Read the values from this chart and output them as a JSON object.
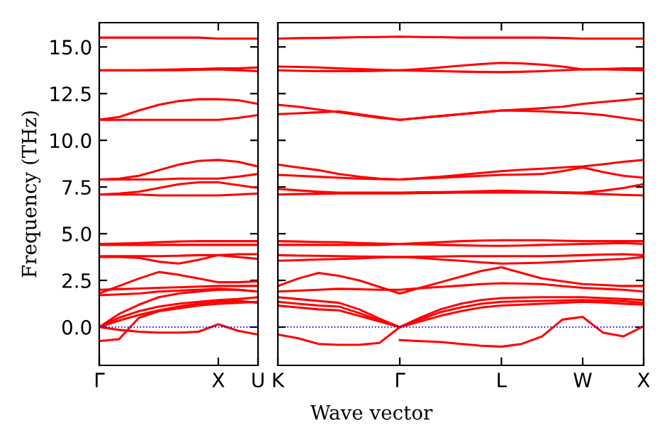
{
  "chart_data": [
    {
      "type": "line",
      "ylabel": "Frequency (THz)",
      "ylim": [
        -2.05,
        16.3
      ],
      "categories": [
        "Γ",
        null,
        null,
        null,
        null,
        null,
        "X",
        null,
        "U"
      ],
      "yticks": [
        {
          "value": 0,
          "label": "0.0"
        },
        {
          "value": 2.5,
          "label": "2.5"
        },
        {
          "value": 5,
          "label": "5.0"
        },
        {
          "value": 7.5,
          "label": "7.5"
        },
        {
          "value": 10,
          "label": "10.0"
        },
        {
          "value": 12.5,
          "label": "12.5"
        },
        {
          "value": 15,
          "label": "15.0"
        }
      ],
      "ref_lines": [
        {
          "axis": "y",
          "value": 0,
          "color": "#0000ff",
          "line_style": "dotted"
        }
      ],
      "series": [
        {
          "color": "#ff0000",
          "values": [
            15.5,
            15.5,
            15.5,
            15.5,
            15.5,
            15.5,
            15.45,
            15.45,
            15.45
          ]
        },
        {
          "color": "#ff0000",
          "values": [
            13.75,
            13.75,
            13.75,
            13.78,
            13.8,
            13.82,
            13.85,
            13.85,
            13.9
          ]
        },
        {
          "color": "#ff0000",
          "values": [
            13.75,
            13.75,
            13.75,
            13.75,
            13.75,
            13.78,
            13.8,
            13.75,
            13.7
          ]
        },
        {
          "color": "#ff0000",
          "values": [
            11.1,
            11.25,
            11.6,
            11.9,
            12.1,
            12.2,
            12.2,
            12.15,
            11.95
          ]
        },
        {
          "color": "#ff0000",
          "values": [
            11.1,
            11.1,
            11.1,
            11.1,
            11.1,
            11.1,
            11.1,
            11.2,
            11.35
          ]
        },
        {
          "color": "#ff0000",
          "values": [
            7.9,
            7.95,
            8.1,
            8.4,
            8.7,
            8.9,
            8.95,
            8.85,
            8.6
          ]
        },
        {
          "color": "#ff0000",
          "values": [
            7.9,
            7.9,
            7.9,
            7.9,
            7.95,
            7.95,
            7.95,
            8.05,
            8.2
          ]
        },
        {
          "color": "#ff0000",
          "values": [
            7.1,
            7.15,
            7.25,
            7.45,
            7.65,
            7.75,
            7.75,
            7.6,
            7.45
          ]
        },
        {
          "color": "#ff0000",
          "values": [
            7.1,
            7.1,
            7.1,
            7.05,
            7.05,
            7.05,
            7.05,
            7.1,
            7.15
          ]
        },
        {
          "color": "#ff0000",
          "values": [
            4.45,
            4.47,
            4.5,
            4.55,
            4.58,
            4.6,
            4.6,
            4.6,
            4.6
          ]
        },
        {
          "color": "#ff0000",
          "values": [
            4.4,
            4.4,
            4.4,
            4.4,
            4.4,
            4.4,
            4.4,
            4.4,
            4.4
          ]
        },
        {
          "color": "#ff0000",
          "values": [
            3.75,
            3.75,
            3.7,
            3.5,
            3.4,
            3.6,
            3.85,
            3.9,
            3.9
          ]
        },
        {
          "color": "#ff0000",
          "values": [
            3.8,
            3.8,
            3.8,
            3.8,
            3.82,
            3.85,
            3.85,
            3.75,
            3.65
          ]
        },
        {
          "color": "#ff0000",
          "values": [
            1.8,
            2.2,
            2.6,
            2.95,
            2.8,
            2.6,
            2.4,
            2.4,
            2.45
          ]
        },
        {
          "color": "#ff0000",
          "values": [
            2.0,
            2.03,
            2.06,
            2.1,
            2.13,
            2.17,
            2.2,
            2.2,
            2.2
          ]
        },
        {
          "color": "#ff0000",
          "values": [
            1.7,
            1.75,
            1.8,
            1.9,
            1.95,
            2.0,
            2.05,
            2.0,
            1.9
          ]
        },
        {
          "color": "#ff0000",
          "values": [
            0,
            0.35,
            0.65,
            0.9,
            1.1,
            1.25,
            1.35,
            1.4,
            1.3
          ]
        },
        {
          "color": "#ff0000",
          "values": [
            0,
            0.5,
            0.85,
            1.1,
            1.25,
            1.35,
            1.45,
            1.5,
            1.6
          ]
        },
        {
          "color": "#ff0000",
          "values": [
            0,
            0.7,
            1.2,
            1.6,
            1.8,
            1.9,
            2.0,
            2.0,
            1.9
          ]
        },
        {
          "color": "#ff0000",
          "values": [
            -0.75,
            -0.65,
            0.5,
            0.85,
            1.0,
            1.15,
            1.25,
            1.3,
            1.35
          ]
        },
        {
          "color": "#ff0000",
          "values": [
            0,
            -0.15,
            -0.25,
            -0.3,
            -0.3,
            -0.25,
            0.15,
            -0.2,
            -0.4
          ]
        }
      ]
    },
    {
      "type": "line",
      "xlabel": "Wave vector",
      "tick_labels": "x",
      "ylim": [
        -2.05,
        16.3
      ],
      "categories": [
        "K",
        null,
        null,
        null,
        null,
        null,
        "Γ",
        null,
        null,
        null,
        null,
        "L",
        null,
        null,
        null,
        "W",
        null,
        null,
        "X"
      ],
      "yticks": [
        {
          "value": 0,
          "label": null
        },
        {
          "value": 2.5,
          "label": null
        },
        {
          "value": 5,
          "label": null
        },
        {
          "value": 7.5,
          "label": null
        },
        {
          "value": 10,
          "label": null
        },
        {
          "value": 12.5,
          "label": null
        },
        {
          "value": 15,
          "label": null
        }
      ],
      "ref_lines": [
        {
          "axis": "y",
          "value": 0,
          "color": "#0000ff",
          "line_style": "dotted"
        }
      ],
      "series": [
        {
          "color": "#ff0000",
          "values": [
            15.45,
            15.47,
            15.48,
            15.5,
            15.52,
            15.53,
            15.55,
            15.53,
            15.52,
            15.5,
            15.5,
            15.5,
            15.5,
            15.5,
            15.48,
            15.45,
            15.45,
            15.45,
            15.45
          ]
        },
        {
          "color": "#ff0000",
          "values": [
            13.95,
            13.93,
            13.9,
            13.85,
            13.82,
            13.78,
            13.75,
            13.82,
            13.9,
            14.0,
            14.08,
            14.15,
            14.12,
            14.05,
            13.95,
            13.8,
            13.82,
            13.85,
            13.85
          ]
        },
        {
          "color": "#ff0000",
          "values": [
            13.75,
            13.72,
            13.7,
            13.7,
            13.7,
            13.72,
            13.75,
            13.72,
            13.7,
            13.68,
            13.66,
            13.65,
            13.67,
            13.7,
            13.75,
            13.8,
            13.8,
            13.78,
            13.75
          ]
        },
        {
          "color": "#ff0000",
          "values": [
            11.9,
            11.8,
            11.65,
            11.5,
            11.35,
            11.2,
            11.1,
            11.2,
            11.3,
            11.4,
            11.5,
            11.6,
            11.65,
            11.72,
            11.8,
            11.95,
            12.05,
            12.15,
            12.25
          ]
        },
        {
          "color": "#ff0000",
          "values": [
            11.4,
            11.45,
            11.5,
            11.55,
            11.4,
            11.25,
            11.1,
            11.2,
            11.3,
            11.4,
            11.5,
            11.6,
            11.58,
            11.55,
            11.5,
            11.45,
            11.35,
            11.2,
            11.05
          ]
        },
        {
          "color": "#ff0000",
          "values": [
            8.7,
            8.55,
            8.4,
            8.2,
            8.05,
            7.95,
            7.9,
            7.98,
            8.05,
            8.15,
            8.25,
            8.35,
            8.42,
            8.48,
            8.55,
            8.6,
            8.72,
            8.85,
            8.95
          ]
        },
        {
          "color": "#ff0000",
          "values": [
            8.15,
            8.1,
            8.05,
            8.0,
            7.95,
            7.92,
            7.9,
            7.95,
            8.0,
            8.05,
            8.1,
            8.15,
            8.17,
            8.2,
            8.35,
            8.55,
            8.3,
            8.1,
            8.0
          ]
        },
        {
          "color": "#ff0000",
          "values": [
            7.4,
            7.32,
            7.25,
            7.2,
            7.2,
            7.2,
            7.2,
            7.22,
            7.23,
            7.25,
            7.28,
            7.3,
            7.28,
            7.25,
            7.22,
            7.2,
            7.3,
            7.45,
            7.65
          ]
        },
        {
          "color": "#ff0000",
          "values": [
            7.1,
            7.12,
            7.14,
            7.15,
            7.15,
            7.15,
            7.15,
            7.17,
            7.18,
            7.2,
            7.2,
            7.2,
            7.2,
            7.2,
            7.18,
            7.15,
            7.12,
            7.08,
            7.05
          ]
        },
        {
          "color": "#ff0000",
          "values": [
            4.6,
            4.58,
            4.56,
            4.55,
            4.5,
            4.47,
            4.45,
            4.5,
            4.55,
            4.6,
            4.63,
            4.65,
            4.65,
            4.65,
            4.62,
            4.6,
            4.6,
            4.6,
            4.6
          ]
        },
        {
          "color": "#ff0000",
          "values": [
            4.4,
            4.4,
            4.4,
            4.4,
            4.4,
            4.4,
            4.45,
            4.42,
            4.4,
            4.38,
            4.36,
            4.35,
            4.37,
            4.4,
            4.42,
            4.45,
            4.47,
            4.5,
            4.45
          ]
        },
        {
          "color": "#ff0000",
          "values": [
            3.85,
            3.83,
            3.82,
            3.8,
            3.78,
            3.77,
            3.75,
            3.77,
            3.78,
            3.8,
            3.8,
            3.8,
            3.8,
            3.8,
            3.82,
            3.85,
            3.88,
            3.9,
            3.85
          ]
        },
        {
          "color": "#ff0000",
          "values": [
            3.55,
            3.58,
            3.62,
            3.65,
            3.68,
            3.72,
            3.75,
            3.7,
            3.62,
            3.55,
            3.47,
            3.4,
            3.42,
            3.45,
            3.5,
            3.55,
            3.6,
            3.65,
            3.75
          ]
        },
        {
          "color": "#ff0000",
          "values": [
            2.2,
            2.6,
            2.9,
            2.75,
            2.5,
            2.15,
            1.8,
            2.1,
            2.4,
            2.7,
            3.0,
            3.2,
            2.9,
            2.6,
            2.45,
            2.3,
            2.25,
            2.2,
            2.2
          ]
        },
        {
          "color": "#ff0000",
          "values": [
            1.9,
            1.95,
            2.0,
            2.05,
            2.03,
            2.0,
            2.0,
            2.08,
            2.15,
            2.22,
            2.3,
            2.35,
            2.33,
            2.3,
            2.2,
            2.1,
            2.05,
            2.0,
            1.9
          ]
        },
        {
          "color": "#ff0000",
          "values": [
            1.6,
            1.5,
            1.4,
            1.3,
            0.95,
            0.45,
            0,
            0.5,
            0.95,
            1.25,
            1.45,
            1.55,
            1.58,
            1.6,
            1.6,
            1.6,
            1.55,
            1.5,
            1.45
          ]
        },
        {
          "color": "#ff0000",
          "values": [
            1.35,
            1.25,
            1.15,
            1.1,
            0.75,
            0.35,
            0,
            0.4,
            0.8,
            1.05,
            1.25,
            1.35,
            1.38,
            1.4,
            1.43,
            1.45,
            1.42,
            1.38,
            1.3
          ]
        },
        {
          "color": "#ff0000",
          "values": [
            1.15,
            1.05,
            0.95,
            0.9,
            0.6,
            0.3,
            0,
            0.3,
            0.6,
            0.85,
            1.05,
            1.15,
            1.2,
            1.25,
            1.3,
            1.35,
            1.32,
            1.25,
            1.2
          ]
        },
        {
          "color": "#ff0000",
          "values": [
            -0.4,
            -0.6,
            -0.9,
            -0.95,
            -0.95,
            -0.85,
            0,
            null,
            null,
            null,
            null,
            null,
            null,
            null,
            null,
            null,
            null,
            null,
            null
          ]
        },
        {
          "color": "#ff0000",
          "values": [
            null,
            null,
            null,
            null,
            null,
            null,
            -0.7,
            -0.75,
            -0.8,
            -0.9,
            -1.0,
            -1.05,
            -0.9,
            -0.5,
            0.4,
            0.55,
            -0.3,
            -0.5,
            0.05
          ]
        }
      ]
    }
  ]
}
